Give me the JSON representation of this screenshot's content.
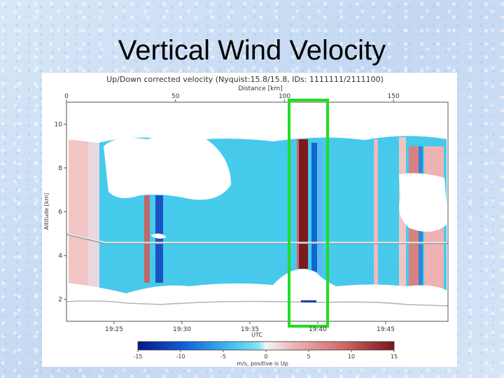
{
  "slide": {
    "title": "Vertical Wind Velocity"
  },
  "chart_data": {
    "type": "heatmap",
    "title": "Up/Down corrected velocity (Nyquist:15.8/15.8, IDs: 1111111/2111100)",
    "top_axis": {
      "label": "Distance [km]",
      "range": [
        0,
        175
      ],
      "ticks": [
        0,
        50,
        100,
        150
      ]
    },
    "xlabel": "UTC",
    "x_ticks": [
      "19:25",
      "19:30",
      "19:35",
      "19:40",
      "19:45"
    ],
    "ylabel": "Altitude [km]",
    "ylim": [
      1,
      11
    ],
    "y_ticks": [
      2,
      4,
      6,
      8,
      10
    ],
    "colorbar": {
      "label": "m/s, positive is Up",
      "range": [
        -15,
        15
      ],
      "ticks": [
        -15,
        -10,
        -5,
        0,
        5,
        10,
        15
      ],
      "colors": [
        "#08148c",
        "#1260d8",
        "#3cb8ec",
        "#86e2f4",
        "#f2f6f8",
        "#f0b8b8",
        "#d06a6a",
        "#7a1418"
      ]
    },
    "highlight": {
      "label": "green box",
      "color": "#22dd22",
      "time_range": [
        "19:38:30",
        "19:40:30"
      ]
    }
  }
}
